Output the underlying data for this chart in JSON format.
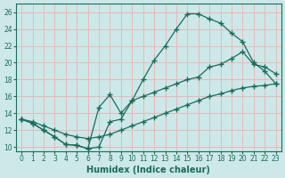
{
  "xlabel": "Humidex (Indice chaleur)",
  "bg_color": "#cde8e8",
  "grid_color": "#e8b8b8",
  "line_color": "#1a6b5a",
  "xlim": [
    -0.5,
    23.5
  ],
  "ylim": [
    9.5,
    27
  ],
  "yticks": [
    10,
    12,
    14,
    16,
    18,
    20,
    22,
    24,
    26
  ],
  "xticks": [
    0,
    1,
    2,
    3,
    4,
    5,
    6,
    7,
    8,
    9,
    10,
    11,
    12,
    13,
    14,
    15,
    16,
    17,
    18,
    19,
    20,
    21,
    22,
    23
  ],
  "line1_x": [
    0,
    1,
    2,
    3,
    4,
    5,
    6,
    7,
    8,
    9,
    10,
    11,
    12,
    13,
    14,
    15,
    16,
    17,
    18,
    19,
    20,
    21,
    22,
    23
  ],
  "line1_y": [
    13.3,
    13.0,
    12.5,
    12.0,
    11.5,
    11.2,
    11.0,
    11.2,
    11.5,
    12.0,
    12.5,
    13.0,
    13.5,
    14.0,
    14.5,
    15.0,
    15.5,
    16.0,
    16.3,
    16.7,
    17.0,
    17.2,
    17.3,
    17.5
  ],
  "line2_x": [
    0,
    1,
    2,
    3,
    4,
    5,
    6,
    7,
    8,
    9,
    10,
    11,
    12,
    13,
    14,
    15,
    16,
    17,
    18,
    19,
    20,
    21,
    22,
    23
  ],
  "line2_y": [
    13.3,
    12.8,
    12.0,
    11.2,
    10.3,
    10.2,
    9.8,
    10.0,
    13.0,
    13.3,
    15.5,
    18.0,
    20.3,
    22.0,
    24.0,
    25.8,
    25.8,
    25.2,
    24.7,
    23.5,
    22.5,
    20.0,
    19.0,
    17.5
  ],
  "line3_x": [
    0,
    1,
    2,
    3,
    4,
    5,
    6,
    7,
    8,
    9,
    10,
    11,
    12,
    13,
    14,
    15,
    16,
    17,
    18,
    19,
    20,
    21,
    22,
    23
  ],
  "line3_y": [
    13.3,
    12.8,
    12.0,
    11.2,
    10.3,
    10.2,
    9.8,
    14.7,
    16.2,
    14.0,
    15.5,
    16.0,
    16.5,
    17.0,
    17.5,
    18.0,
    18.3,
    19.5,
    19.8,
    20.5,
    21.3,
    19.8,
    19.5,
    18.7
  ]
}
